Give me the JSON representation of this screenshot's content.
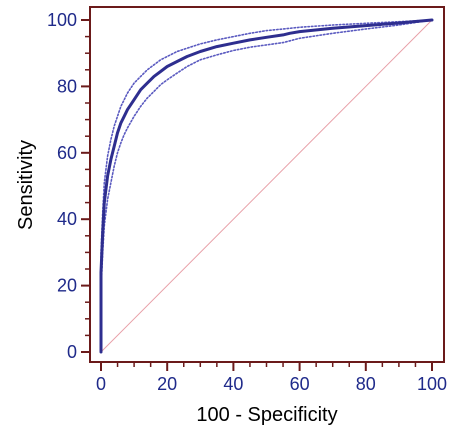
{
  "chart_data": {
    "type": "line",
    "title": "",
    "xlabel": "100 - Specificity",
    "ylabel": "Sensitivity",
    "xlim": [
      0,
      100
    ],
    "ylim": [
      0,
      100
    ],
    "x_ticks": [
      "0",
      "20",
      "40",
      "60",
      "80",
      "100"
    ],
    "y_ticks": [
      "0",
      "20",
      "40",
      "60",
      "80",
      "100"
    ],
    "grid": false,
    "legend": "none",
    "colors": {
      "frame": "#6b1a1a",
      "curve": "#2e2e8f",
      "ci": "#5a5ac0",
      "diagonal": "#e8a0a8",
      "tick_label": "#1f2a8a"
    },
    "series": [
      {
        "role": "roc-curve",
        "style": "solid-thick",
        "points": [
          [
            0,
            0
          ],
          [
            0,
            24
          ],
          [
            0.5,
            36
          ],
          [
            1,
            45
          ],
          [
            2,
            53
          ],
          [
            3,
            58
          ],
          [
            4,
            62
          ],
          [
            5,
            66
          ],
          [
            6,
            69
          ],
          [
            7,
            71
          ],
          [
            8,
            73
          ],
          [
            10,
            76
          ],
          [
            12,
            79
          ],
          [
            14,
            81
          ],
          [
            16,
            83
          ],
          [
            18,
            84.5
          ],
          [
            20,
            86
          ],
          [
            23,
            87.5
          ],
          [
            26,
            89
          ],
          [
            30,
            90.5
          ],
          [
            35,
            92
          ],
          [
            40,
            93
          ],
          [
            45,
            94
          ],
          [
            50,
            94.8
          ],
          [
            55,
            95.5
          ],
          [
            57,
            96
          ],
          [
            60,
            96.5
          ],
          [
            70,
            97.5
          ],
          [
            80,
            98.3
          ],
          [
            90,
            99.1
          ],
          [
            100,
            100
          ]
        ]
      },
      {
        "role": "upper-confidence-bound",
        "style": "dotted",
        "points": [
          [
            0,
            0
          ],
          [
            0,
            30
          ],
          [
            0.5,
            42
          ],
          [
            1,
            51
          ],
          [
            2,
            59
          ],
          [
            3,
            64
          ],
          [
            4,
            68
          ],
          [
            5,
            71
          ],
          [
            6,
            74
          ],
          [
            7,
            76
          ],
          [
            8,
            78
          ],
          [
            10,
            81
          ],
          [
            12,
            83
          ],
          [
            14,
            85
          ],
          [
            16,
            86.5
          ],
          [
            18,
            88
          ],
          [
            20,
            89
          ],
          [
            23,
            90.5
          ],
          [
            26,
            91.5
          ],
          [
            30,
            92.8
          ],
          [
            35,
            94
          ],
          [
            40,
            95
          ],
          [
            45,
            96
          ],
          [
            50,
            96.8
          ],
          [
            55,
            97.3
          ],
          [
            60,
            97.8
          ],
          [
            70,
            98.5
          ],
          [
            80,
            99
          ],
          [
            90,
            99.5
          ],
          [
            100,
            100
          ]
        ]
      },
      {
        "role": "lower-confidence-bound",
        "style": "dotted",
        "points": [
          [
            0,
            0
          ],
          [
            0,
            18
          ],
          [
            0.5,
            30
          ],
          [
            1,
            38
          ],
          [
            2,
            46
          ],
          [
            3,
            51
          ],
          [
            4,
            56
          ],
          [
            5,
            60
          ],
          [
            6,
            63
          ],
          [
            7,
            65.5
          ],
          [
            8,
            67.5
          ],
          [
            10,
            71
          ],
          [
            12,
            74
          ],
          [
            14,
            76.5
          ],
          [
            16,
            78.5
          ],
          [
            18,
            80.5
          ],
          [
            20,
            82
          ],
          [
            23,
            84
          ],
          [
            26,
            86
          ],
          [
            30,
            88
          ],
          [
            35,
            89.5
          ],
          [
            40,
            90.8
          ],
          [
            45,
            91.8
          ],
          [
            50,
            92.5
          ],
          [
            55,
            93.2
          ],
          [
            60,
            94.5
          ],
          [
            70,
            96
          ],
          [
            80,
            97.3
          ],
          [
            90,
            98.5
          ],
          [
            100,
            100
          ]
        ]
      },
      {
        "role": "diagonal-reference",
        "style": "thin",
        "points": [
          [
            0,
            0
          ],
          [
            100,
            100
          ]
        ]
      }
    ]
  }
}
